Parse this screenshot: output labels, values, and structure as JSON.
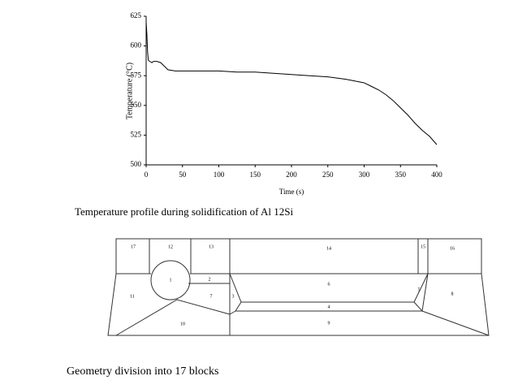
{
  "chart_data": {
    "type": "line",
    "x_label": "Time (s)",
    "y_label": "Temperature (°C)",
    "x": [
      0,
      1,
      2,
      3,
      5,
      8,
      10,
      15,
      20,
      25,
      30,
      40,
      50,
      75,
      100,
      125,
      150,
      175,
      200,
      225,
      250,
      275,
      300,
      310,
      320,
      330,
      340,
      350,
      360,
      370,
      380,
      390,
      400
    ],
    "series": [
      {
        "color": "#000000",
        "values": [
          620,
          610,
          595,
          588,
          587,
          586,
          587,
          587,
          586,
          583,
          580,
          579,
          579,
          579,
          579,
          578,
          578,
          577,
          576,
          575,
          574,
          572,
          569,
          566,
          563,
          559,
          554,
          548,
          542,
          535,
          529,
          524,
          517
        ]
      }
    ],
    "xlim": [
      0,
      400
    ],
    "xticks": [
      0,
      50,
      100,
      150,
      200,
      250,
      300,
      350,
      400
    ],
    "ylim": [
      500,
      625
    ],
    "yticks": [
      500,
      525,
      550,
      575,
      600,
      625
    ]
  },
  "captions": [
    "Temperature profile during solidification of Al 12Si",
    "Geometry division into 17 blocks"
  ],
  "diagram": {
    "blocks": [
      "17",
      "12",
      "13",
      "14",
      "15",
      "16",
      "1",
      "2",
      "6",
      "11",
      "7",
      "3",
      "5",
      "8",
      "4",
      "10",
      "9"
    ]
  }
}
